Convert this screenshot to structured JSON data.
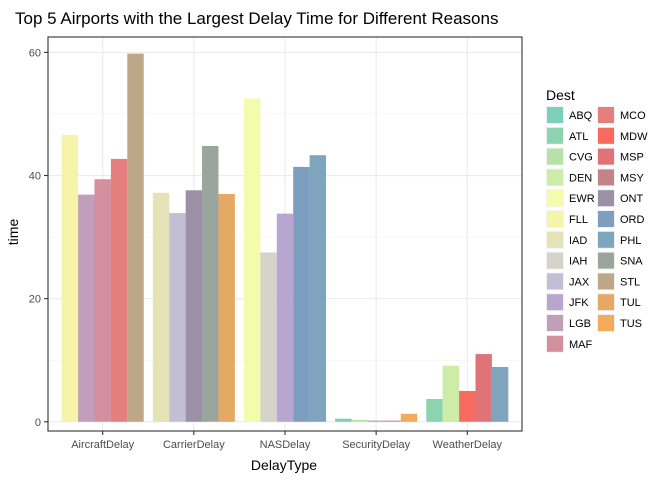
{
  "chart_data": {
    "type": "bar",
    "title": "Top 5 Airports with the Largest Delay Time for Different Reasons",
    "xlabel": "DelayType",
    "ylabel": "time",
    "ylim": [
      -1.5,
      62.5
    ],
    "yticks": [
      0,
      20,
      40,
      60
    ],
    "grid": true,
    "legend": {
      "title": "Dest",
      "position": "right",
      "columns": 2
    },
    "categories": [
      "AircraftDelay",
      "CarrierDelay",
      "NASDelay",
      "SecurityDelay",
      "WeatherDelay"
    ],
    "dest_levels": [
      "ABQ",
      "ATL",
      "CVG",
      "DEN",
      "EWR",
      "FLL",
      "IAD",
      "IAH",
      "JAX",
      "JFK",
      "LGB",
      "MAF",
      "MCO",
      "MDW",
      "MSP",
      "MSY",
      "ONT",
      "ORD",
      "PHL",
      "SNA",
      "STL",
      "TUL",
      "TUS"
    ],
    "colors": {
      "ABQ": "#7fcdbb",
      "ATL": "#8dd3b0",
      "CVG": "#b5e2a6",
      "DEN": "#cdeca8",
      "EWR": "#f4fbaa",
      "FLL": "#f5f4a9",
      "IAD": "#e5e2b8",
      "IAH": "#d5d3c9",
      "JAX": "#c2bfd4",
      "JFK": "#b8a6d0",
      "LGB": "#c29ebb",
      "MAF": "#d38f9e",
      "MCO": "#e57f7d",
      "MDW": "#f76a5e",
      "MSP": "#e07377",
      "MSY": "#c38486",
      "ONT": "#9b90a6",
      "ORD": "#7e9ebf",
      "PHL": "#7ea5bd",
      "SNA": "#9aa59d",
      "STL": "#bea787",
      "TUL": "#e6a965",
      "TUS": "#f5a95a"
    },
    "groups": [
      {
        "category": "AircraftDelay",
        "bars": [
          {
            "dest": "FLL",
            "value": 46.6
          },
          {
            "dest": "LGB",
            "value": 36.9
          },
          {
            "dest": "MAF",
            "value": 39.4
          },
          {
            "dest": "MCO",
            "value": 42.7
          },
          {
            "dest": "STL",
            "value": 59.8
          }
        ]
      },
      {
        "category": "CarrierDelay",
        "bars": [
          {
            "dest": "IAD",
            "value": 37.2
          },
          {
            "dest": "JAX",
            "value": 33.9
          },
          {
            "dest": "ONT",
            "value": 37.6
          },
          {
            "dest": "SNA",
            "value": 44.8
          },
          {
            "dest": "TUL",
            "value": 37.0
          }
        ]
      },
      {
        "category": "NASDelay",
        "bars": [
          {
            "dest": "EWR",
            "value": 52.5
          },
          {
            "dest": "IAH",
            "value": 27.5
          },
          {
            "dest": "JFK",
            "value": 33.8
          },
          {
            "dest": "ORD",
            "value": 41.4
          },
          {
            "dest": "PHL",
            "value": 43.3
          }
        ]
      },
      {
        "category": "SecurityDelay",
        "bars": [
          {
            "dest": "ABQ",
            "value": 0.5
          },
          {
            "dest": "CVG",
            "value": 0.3
          },
          {
            "dest": "LGB",
            "value": 0.2
          },
          {
            "dest": "MAF",
            "value": 0.2
          },
          {
            "dest": "TUS",
            "value": 1.3
          }
        ]
      },
      {
        "category": "WeatherDelay",
        "bars": [
          {
            "dest": "ATL",
            "value": 3.7
          },
          {
            "dest": "DEN",
            "value": 9.1
          },
          {
            "dest": "MDW",
            "value": 5.0
          },
          {
            "dest": "MSP",
            "value": 11.0
          },
          {
            "dest": "PHL",
            "value": 8.9
          }
        ]
      }
    ]
  }
}
